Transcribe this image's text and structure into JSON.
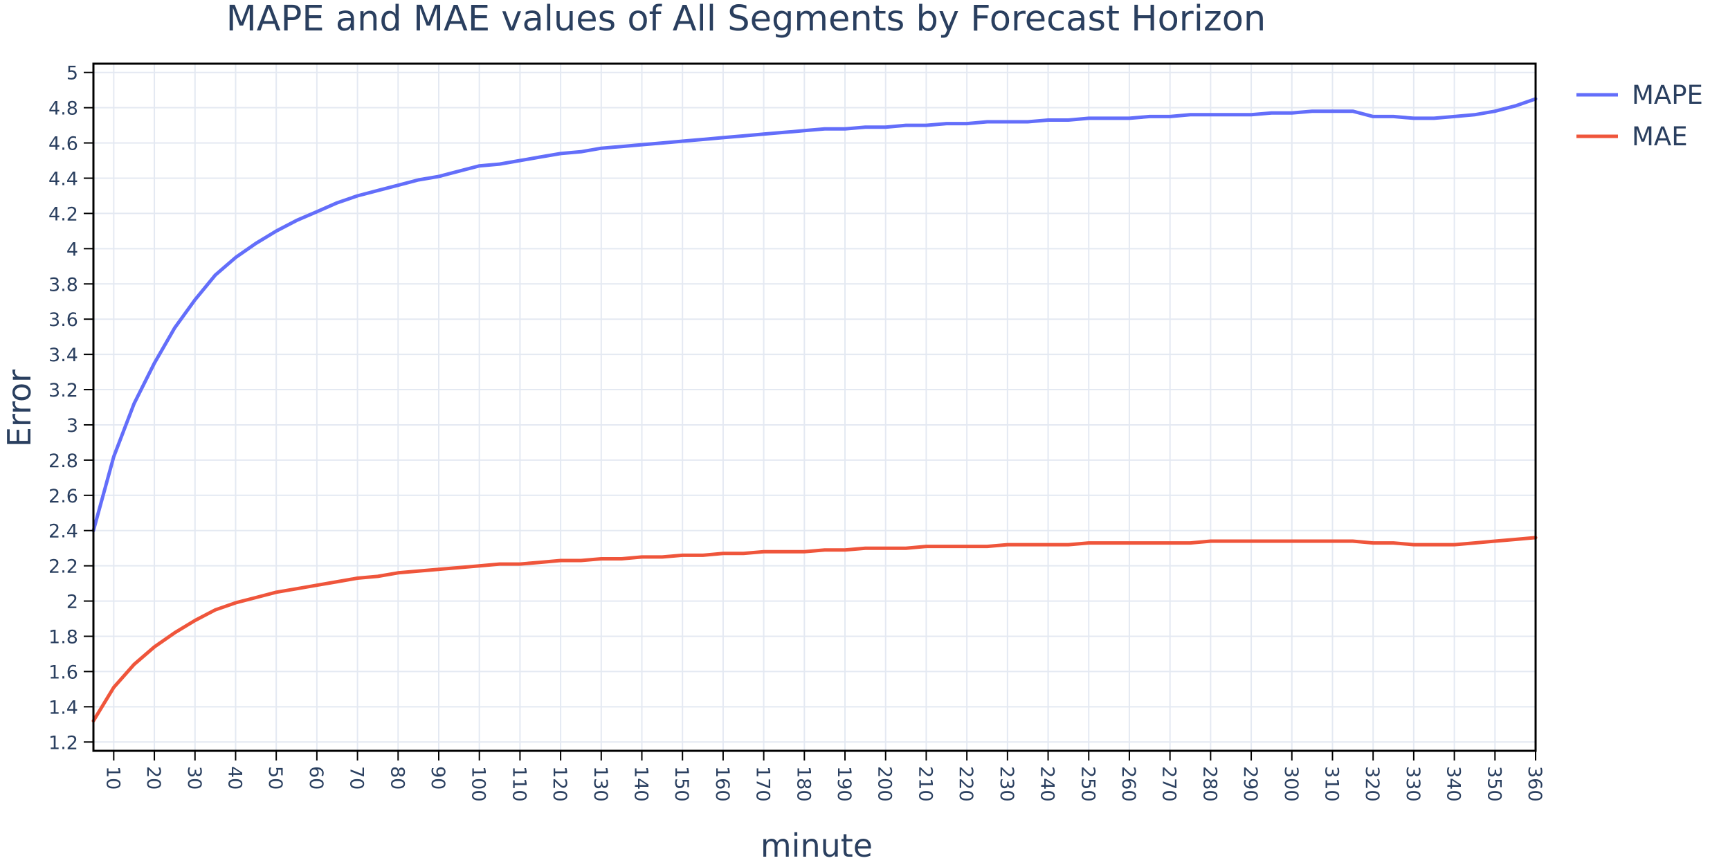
{
  "chart_data": {
    "type": "line",
    "title": "MAPE and MAE values of All Segments by Forecast Horizon",
    "xlabel": "minute",
    "ylabel": "Error",
    "xlim": [
      5,
      360
    ],
    "ylim": [
      1.15,
      5.05
    ],
    "x_ticks": [
      10,
      20,
      30,
      40,
      50,
      60,
      70,
      80,
      90,
      100,
      110,
      120,
      130,
      140,
      150,
      160,
      170,
      180,
      190,
      200,
      210,
      220,
      230,
      240,
      250,
      260,
      270,
      280,
      290,
      300,
      310,
      320,
      330,
      340,
      350,
      360
    ],
    "y_ticks": [
      1.2,
      1.4,
      1.6,
      1.8,
      2,
      2.2,
      2.4,
      2.6,
      2.8,
      3,
      3.2,
      3.4,
      3.6,
      3.8,
      4,
      4.2,
      4.4,
      4.6,
      4.8,
      5
    ],
    "grid": true,
    "legend_position": "top-right",
    "series": [
      {
        "name": "MAPE",
        "color": "#636efa",
        "x": [
          5,
          10,
          15,
          20,
          25,
          30,
          35,
          40,
          45,
          50,
          55,
          60,
          65,
          70,
          75,
          80,
          85,
          90,
          95,
          100,
          105,
          110,
          115,
          120,
          125,
          130,
          135,
          140,
          145,
          150,
          155,
          160,
          165,
          170,
          175,
          180,
          185,
          190,
          195,
          200,
          205,
          210,
          215,
          220,
          225,
          230,
          235,
          240,
          245,
          250,
          255,
          260,
          265,
          270,
          275,
          280,
          285,
          290,
          295,
          300,
          305,
          310,
          315,
          320,
          325,
          330,
          335,
          340,
          345,
          350,
          355,
          360
        ],
        "values": [
          2.4,
          2.82,
          3.12,
          3.35,
          3.55,
          3.71,
          3.85,
          3.95,
          4.03,
          4.1,
          4.16,
          4.21,
          4.26,
          4.3,
          4.33,
          4.36,
          4.39,
          4.41,
          4.44,
          4.47,
          4.48,
          4.5,
          4.52,
          4.54,
          4.55,
          4.57,
          4.58,
          4.59,
          4.6,
          4.61,
          4.62,
          4.63,
          4.64,
          4.65,
          4.66,
          4.67,
          4.68,
          4.68,
          4.69,
          4.69,
          4.7,
          4.7,
          4.71,
          4.71,
          4.72,
          4.72,
          4.72,
          4.73,
          4.73,
          4.74,
          4.74,
          4.74,
          4.75,
          4.75,
          4.76,
          4.76,
          4.76,
          4.76,
          4.77,
          4.77,
          4.78,
          4.78,
          4.78,
          4.75,
          4.75,
          4.74,
          4.74,
          4.75,
          4.76,
          4.78,
          4.81,
          4.85
        ]
      },
      {
        "name": "MAE",
        "color": "#ef553b",
        "x": [
          5,
          10,
          15,
          20,
          25,
          30,
          35,
          40,
          45,
          50,
          55,
          60,
          65,
          70,
          75,
          80,
          85,
          90,
          95,
          100,
          105,
          110,
          115,
          120,
          125,
          130,
          135,
          140,
          145,
          150,
          155,
          160,
          165,
          170,
          175,
          180,
          185,
          190,
          195,
          200,
          205,
          210,
          215,
          220,
          225,
          230,
          235,
          240,
          245,
          250,
          255,
          260,
          265,
          270,
          275,
          280,
          285,
          290,
          295,
          300,
          305,
          310,
          315,
          320,
          325,
          330,
          335,
          340,
          345,
          350,
          355,
          360
        ],
        "values": [
          1.32,
          1.51,
          1.64,
          1.74,
          1.82,
          1.89,
          1.95,
          1.99,
          2.02,
          2.05,
          2.07,
          2.09,
          2.11,
          2.13,
          2.14,
          2.16,
          2.17,
          2.18,
          2.19,
          2.2,
          2.21,
          2.21,
          2.22,
          2.23,
          2.23,
          2.24,
          2.24,
          2.25,
          2.25,
          2.26,
          2.26,
          2.27,
          2.27,
          2.28,
          2.28,
          2.28,
          2.29,
          2.29,
          2.3,
          2.3,
          2.3,
          2.31,
          2.31,
          2.31,
          2.31,
          2.32,
          2.32,
          2.32,
          2.32,
          2.33,
          2.33,
          2.33,
          2.33,
          2.33,
          2.33,
          2.34,
          2.34,
          2.34,
          2.34,
          2.34,
          2.34,
          2.34,
          2.34,
          2.33,
          2.33,
          2.32,
          2.32,
          2.32,
          2.33,
          2.34,
          2.35,
          2.36
        ]
      }
    ]
  }
}
